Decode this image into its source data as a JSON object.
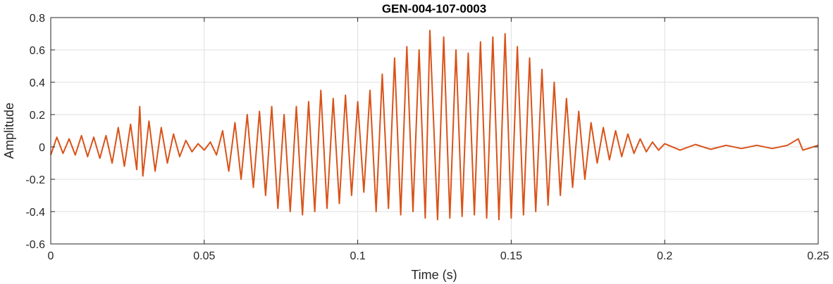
{
  "chart_data": {
    "type": "line",
    "title": "GEN-004-107-0003",
    "xlabel": "Time (s)",
    "ylabel": "Amplitude",
    "xlim": [
      0,
      0.25
    ],
    "ylim": [
      -0.6,
      0.8
    ],
    "xticks": [
      0,
      0.05,
      0.1,
      0.15,
      0.2,
      0.25
    ],
    "xtick_labels": [
      "0",
      "0.05",
      "0.1",
      "0.15",
      "0.2",
      "0.25"
    ],
    "yticks": [
      -0.6,
      -0.4,
      -0.2,
      0,
      0.2,
      0.4,
      0.6,
      0.8
    ],
    "ytick_labels": [
      "-0.6",
      "-0.4",
      "-0.2",
      "0",
      "0.2",
      "0.4",
      "0.6",
      "0.8"
    ],
    "grid": true,
    "line_color": "#d95319",
    "series": [
      {
        "x": [
          0,
          0.002,
          0.004,
          0.006,
          0.008,
          0.01,
          0.012,
          0.014,
          0.016,
          0.018,
          0.02,
          0.022,
          0.024,
          0.026,
          0.028,
          0.029,
          0.03,
          0.032,
          0.034,
          0.036,
          0.038,
          0.04,
          0.042,
          0.044,
          0.046,
          0.048,
          0.05,
          0.052,
          0.054,
          0.056,
          0.058,
          0.06,
          0.062,
          0.064,
          0.066,
          0.068,
          0.07,
          0.072,
          0.074,
          0.076,
          0.078,
          0.08,
          0.082,
          0.084,
          0.086,
          0.088,
          0.09,
          0.092,
          0.094,
          0.096,
          0.098,
          0.1,
          0.102,
          0.104,
          0.106,
          0.108,
          0.11,
          0.112,
          0.114,
          0.116,
          0.118,
          0.12,
          0.122,
          0.1235,
          0.126,
          0.128,
          0.13,
          0.132,
          0.134,
          0.136,
          0.138,
          0.14,
          0.142,
          0.144,
          0.146,
          0.148,
          0.15,
          0.152,
          0.154,
          0.156,
          0.158,
          0.16,
          0.162,
          0.164,
          0.166,
          0.168,
          0.17,
          0.172,
          0.174,
          0.176,
          0.178,
          0.18,
          0.182,
          0.184,
          0.186,
          0.188,
          0.19,
          0.192,
          0.194,
          0.196,
          0.198,
          0.2,
          0.205,
          0.21,
          0.215,
          0.22,
          0.225,
          0.23,
          0.235,
          0.24,
          0.2435,
          0.245,
          0.25
        ],
        "y": [
          -0.05,
          0.06,
          -0.04,
          0.05,
          -0.05,
          0.07,
          -0.06,
          0.06,
          -0.07,
          0.07,
          -0.1,
          0.12,
          -0.12,
          0.14,
          -0.14,
          0.25,
          -0.18,
          0.16,
          -0.15,
          0.12,
          -0.1,
          0.08,
          -0.06,
          0.04,
          -0.03,
          0.02,
          -0.02,
          0.03,
          -0.05,
          0.1,
          -0.15,
          0.15,
          -0.2,
          0.2,
          -0.25,
          0.22,
          -0.3,
          0.25,
          -0.38,
          0.2,
          -0.4,
          0.25,
          -0.42,
          0.28,
          -0.4,
          0.35,
          -0.38,
          0.3,
          -0.35,
          0.32,
          -0.3,
          0.28,
          -0.28,
          0.35,
          -0.4,
          0.45,
          -0.38,
          0.55,
          -0.42,
          0.62,
          -0.4,
          0.6,
          -0.44,
          0.72,
          -0.45,
          0.68,
          -0.44,
          0.6,
          -0.43,
          0.58,
          -0.42,
          0.65,
          -0.44,
          0.68,
          -0.45,
          0.7,
          -0.44,
          0.62,
          -0.42,
          0.55,
          -0.4,
          0.48,
          -0.36,
          0.4,
          -0.3,
          0.3,
          -0.25,
          0.22,
          -0.2,
          0.15,
          -0.1,
          0.12,
          -0.08,
          0.1,
          -0.06,
          0.08,
          -0.04,
          0.05,
          -0.03,
          0.03,
          -0.02,
          0.02,
          -0.02,
          0.015,
          -0.015,
          0.01,
          -0.01,
          0.01,
          -0.01,
          0.01,
          0.05,
          -0.02,
          0.01
        ]
      }
    ]
  }
}
